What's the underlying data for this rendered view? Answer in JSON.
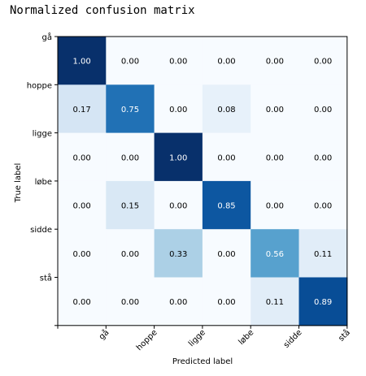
{
  "chart_data": {
    "type": "heatmap",
    "title": "Normalized confusion matrix",
    "xlabel": "Predicted label",
    "ylabel": "True label",
    "x_categories": [
      "gå",
      "hoppe",
      "ligge",
      "løbe",
      "sidde",
      "stå"
    ],
    "y_categories": [
      "gå",
      "hoppe",
      "ligge",
      "løbe",
      "sidde",
      "stå"
    ],
    "values": [
      [
        1.0,
        0.0,
        0.0,
        0.0,
        0.0,
        0.0
      ],
      [
        0.17,
        0.75,
        0.0,
        0.08,
        0.0,
        0.0
      ],
      [
        0.0,
        0.0,
        1.0,
        0.0,
        0.0,
        0.0
      ],
      [
        0.0,
        0.15,
        0.0,
        0.85,
        0.0,
        0.0
      ],
      [
        0.0,
        0.0,
        0.33,
        0.0,
        0.56,
        0.11
      ],
      [
        0.0,
        0.0,
        0.0,
        0.0,
        0.11,
        0.89
      ]
    ],
    "value_labels": [
      [
        "1.00",
        "0.00",
        "0.00",
        "0.00",
        "0.00",
        "0.00"
      ],
      [
        "0.17",
        "0.75",
        "0.00",
        "0.08",
        "0.00",
        "0.00"
      ],
      [
        "0.00",
        "0.00",
        "1.00",
        "0.00",
        "0.00",
        "0.00"
      ],
      [
        "0.00",
        "0.15",
        "0.00",
        "0.85",
        "0.00",
        "0.00"
      ],
      [
        "0.00",
        "0.00",
        "0.33",
        "0.00",
        "0.56",
        "0.11"
      ],
      [
        "0.00",
        "0.00",
        "0.00",
        "0.00",
        "0.11",
        "0.89"
      ]
    ],
    "colormap": "Blues",
    "color_low": "#f7fbff",
    "color_high": "#08306b",
    "text_threshold": 0.5,
    "text_color_dark": "#000000",
    "text_color_light": "#ffffff"
  }
}
